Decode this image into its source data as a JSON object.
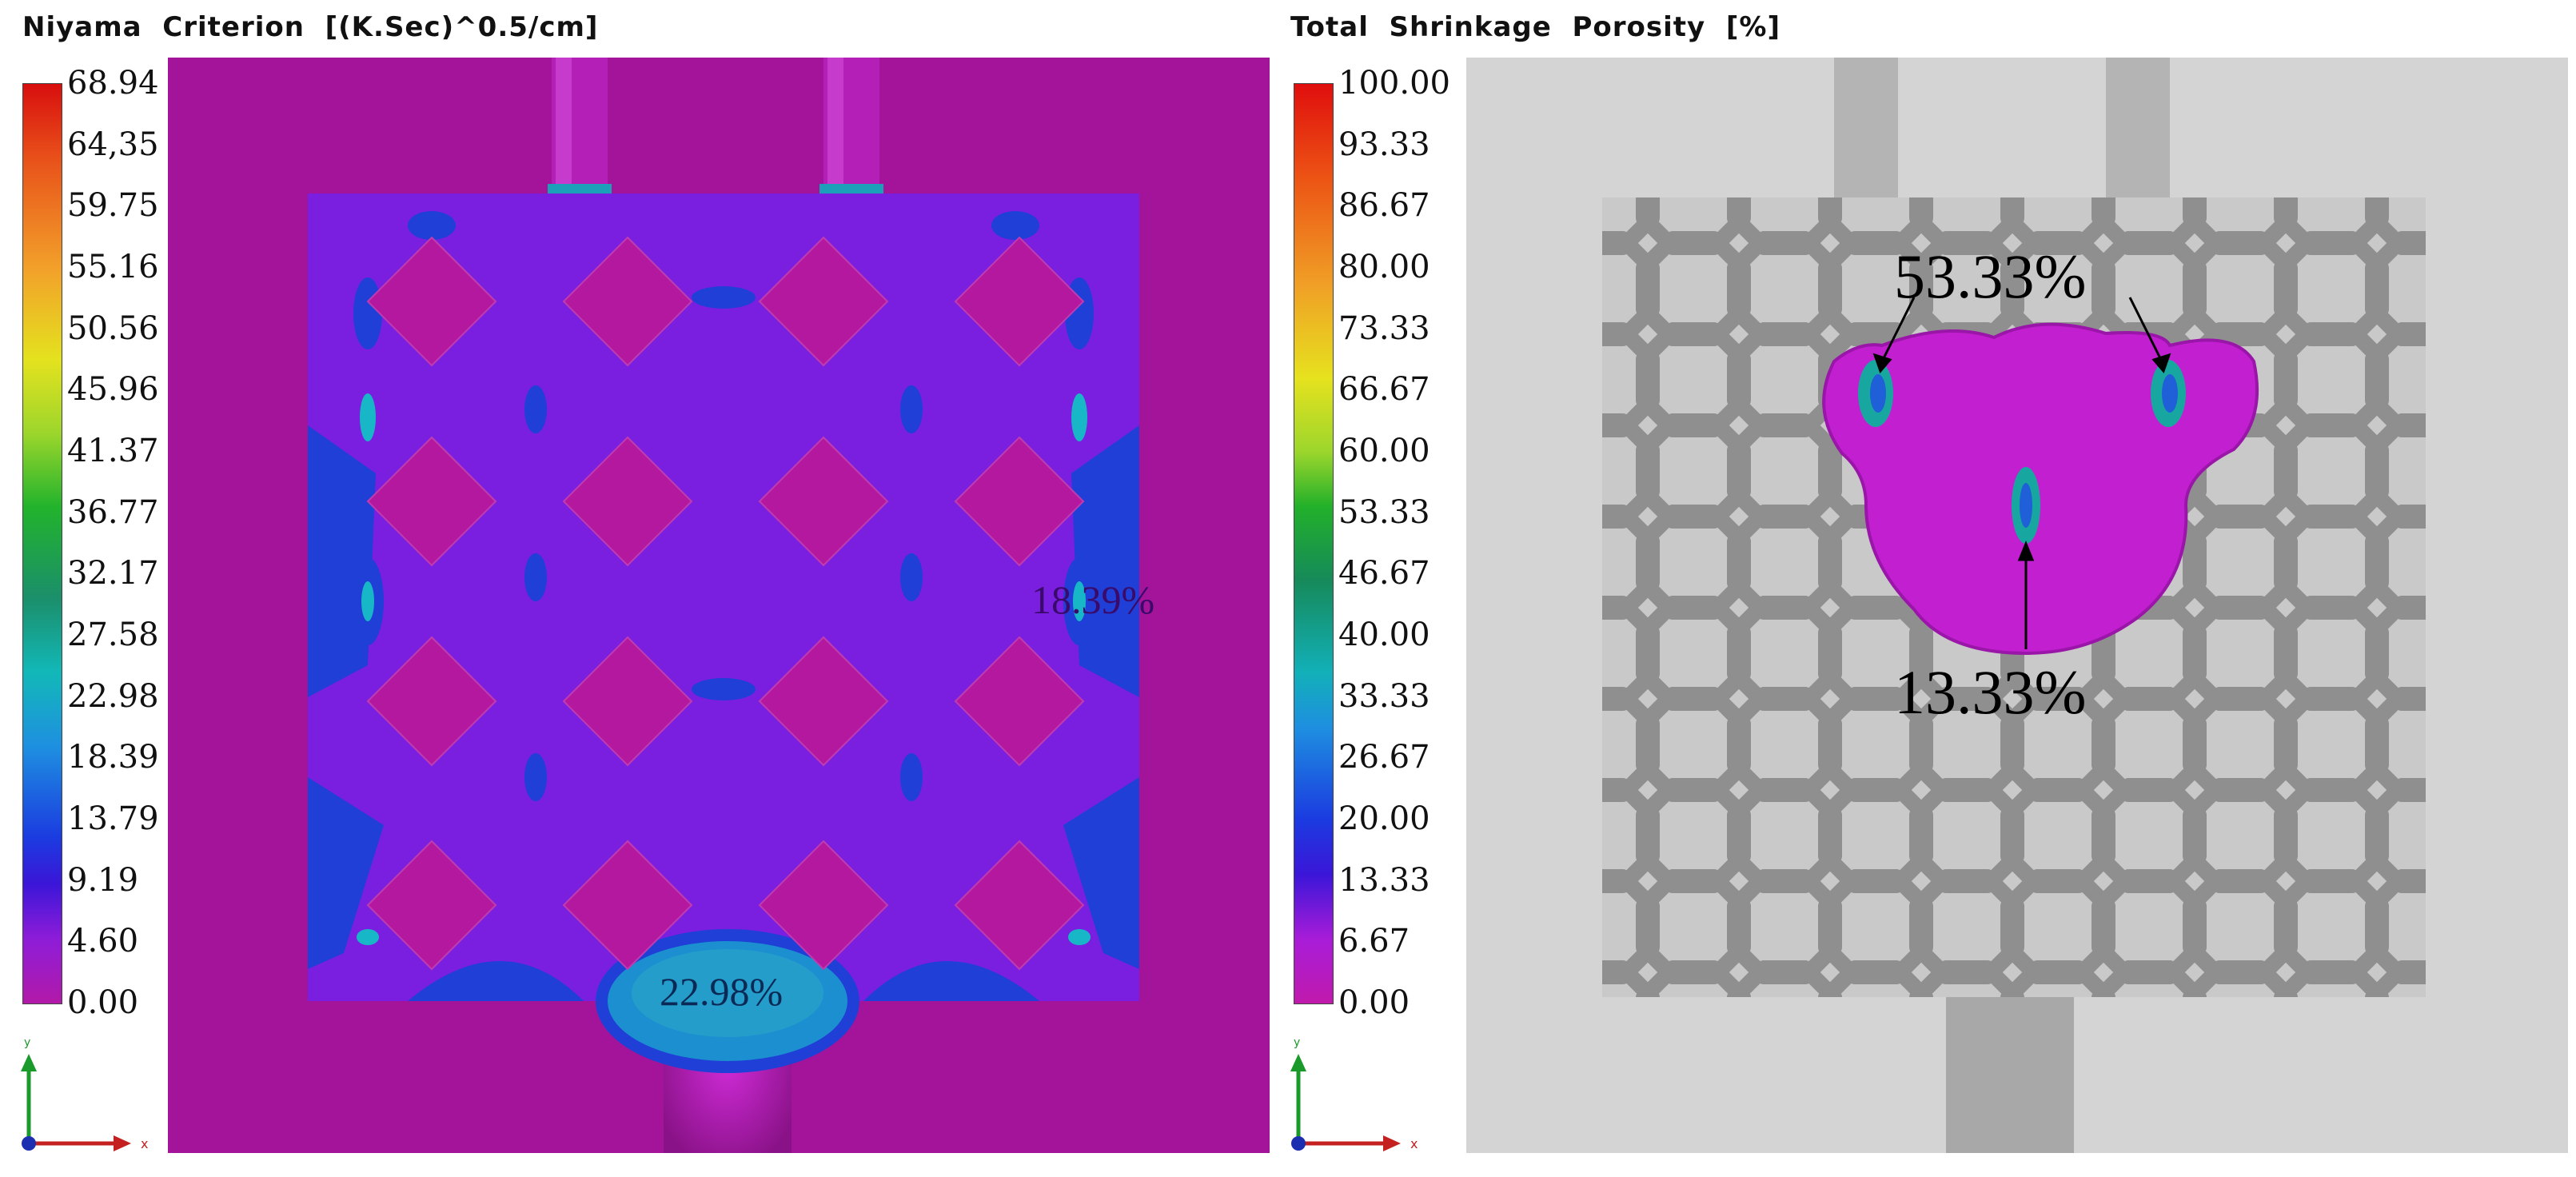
{
  "left_panel": {
    "title": "Niyama  Criterion  [(K.Sec)^0.5/cm]",
    "colorbar_ticks": [
      "68.94",
      "64,35",
      "59.75",
      "55.16",
      "50.56",
      "45.96",
      "41.37",
      "36.77",
      "32.17",
      "27.58",
      "22.98",
      "18.39",
      "13.79",
      "9.19",
      "4.60",
      "0.00"
    ],
    "annotations": {
      "right_value": "18.39%",
      "bottom_value": "22.98%"
    },
    "axis": {
      "y_label": "y",
      "x_label": "x"
    }
  },
  "right_panel": {
    "title": "Total  Shrinkage  Porosity  [%]",
    "colorbar_ticks": [
      "100.00",
      "93.33",
      "86.67",
      "80.00",
      "73.33",
      "66.67",
      "60.00",
      "53.33",
      "46.67",
      "40.00",
      "33.33",
      "26.67",
      "20.00",
      "13.33",
      "6.67",
      "0.00"
    ],
    "annotations": {
      "top_value": "53.33%",
      "bottom_value": "13.33%"
    },
    "axis": {
      "y_label": "y",
      "x_label": "x"
    }
  },
  "colors": {
    "magenta_bg": "#a3149a",
    "cast_purple": "#7a1fe0",
    "deep_blue": "#1f3fd6",
    "gray_bg": "#d4d4d4",
    "lattice_gray": "#8f8f8f",
    "porosity_magenta": "#c21fd1"
  }
}
